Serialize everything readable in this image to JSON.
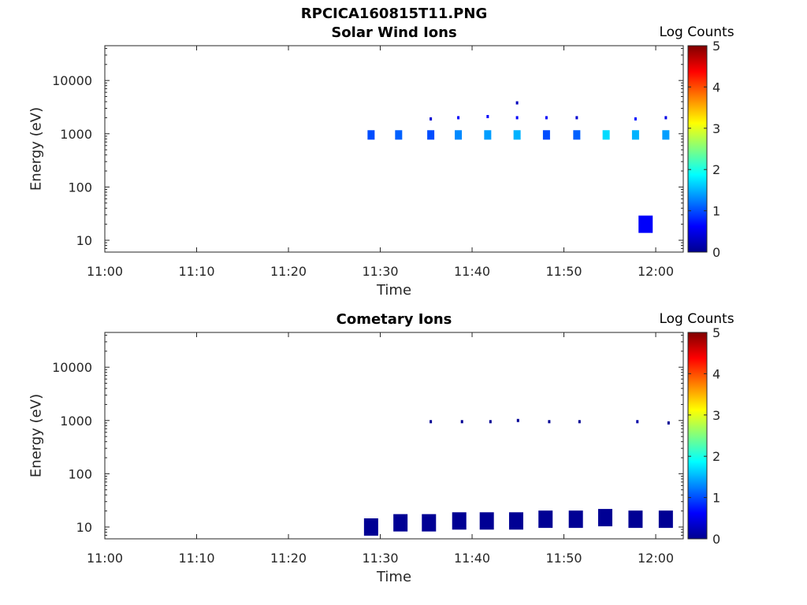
{
  "figure_title": "RPCICA160815T11.PNG",
  "colorbar": {
    "label": "Log Counts",
    "ticks": [
      "0",
      "1",
      "2",
      "3",
      "4",
      "5"
    ],
    "range": [
      0,
      5
    ],
    "colormap": "jet"
  },
  "chart_data": [
    {
      "type": "heatmap",
      "title": "Solar Wind Ions",
      "xlabel": "Time",
      "ylabel": "Energy (eV)",
      "x_ticks": [
        "11:00",
        "11:10",
        "11:20",
        "11:30",
        "11:40",
        "11:50",
        "12:00"
      ],
      "y_ticks": [
        "10",
        "100",
        "1000",
        "10000"
      ],
      "xlim": [
        "11:00",
        "12:03"
      ],
      "ylim": [
        6,
        45000
      ],
      "y_scale": "log",
      "points": [
        {
          "t": "11:29",
          "e": 950,
          "v": 1.0
        },
        {
          "t": "11:32",
          "e": 950,
          "v": 1.1
        },
        {
          "t": "11:35.5",
          "e": 1900,
          "v": 0.4
        },
        {
          "t": "11:35.5",
          "e": 950,
          "v": 1.0
        },
        {
          "t": "11:38.5",
          "e": 2000,
          "v": 0.6
        },
        {
          "t": "11:38.5",
          "e": 950,
          "v": 1.3
        },
        {
          "t": "11:41.7",
          "e": 2100,
          "v": 0.6
        },
        {
          "t": "11:41.7",
          "e": 950,
          "v": 1.4
        },
        {
          "t": "11:44.9",
          "e": 3800,
          "v": 0.3
        },
        {
          "t": "11:44.9",
          "e": 2000,
          "v": 0.6
        },
        {
          "t": "11:44.9",
          "e": 950,
          "v": 1.5
        },
        {
          "t": "11:48.1",
          "e": 2000,
          "v": 0.6
        },
        {
          "t": "11:48.1",
          "e": 950,
          "v": 1.0
        },
        {
          "t": "11:51.4",
          "e": 2000,
          "v": 0.4
        },
        {
          "t": "11:51.4",
          "e": 950,
          "v": 1.1
        },
        {
          "t": "11:54.6",
          "e": 950,
          "v": 1.7
        },
        {
          "t": "11:57.8",
          "e": 1900,
          "v": 0.7
        },
        {
          "t": "11:57.8",
          "e": 950,
          "v": 1.5
        },
        {
          "t": "11:58.9",
          "e": 20,
          "v": 0.6
        },
        {
          "t": "12:01.1",
          "e": 2000,
          "v": 0.5
        },
        {
          "t": "12:01.1",
          "e": 950,
          "v": 1.4
        }
      ]
    },
    {
      "type": "heatmap",
      "title": "Cometary Ions",
      "xlabel": "Time",
      "ylabel": "Energy (eV)",
      "x_ticks": [
        "11:00",
        "11:10",
        "11:20",
        "11:30",
        "11:40",
        "11:50",
        "12:00"
      ],
      "y_ticks": [
        "10",
        "100",
        "1000",
        "10000"
      ],
      "xlim": [
        "11:00",
        "12:03"
      ],
      "ylim": [
        6,
        45000
      ],
      "y_scale": "log",
      "points": [
        {
          "t": "11:35.5",
          "e": 950,
          "v": 0.1
        },
        {
          "t": "11:38.9",
          "e": 950,
          "v": 0.1
        },
        {
          "t": "11:42",
          "e": 950,
          "v": 0.1
        },
        {
          "t": "11:45",
          "e": 1000,
          "v": 0.1
        },
        {
          "t": "11:48.4",
          "e": 950,
          "v": 0.1
        },
        {
          "t": "11:51.7",
          "e": 950,
          "v": 0.1
        },
        {
          "t": "11:58",
          "e": 950,
          "v": 0.2
        },
        {
          "t": "12:01.4",
          "e": 900,
          "v": 0.1
        },
        {
          "t": "11:29",
          "e": 10,
          "v": 0.1
        },
        {
          "t": "11:32.2",
          "e": 12,
          "v": 0.1
        },
        {
          "t": "11:35.3",
          "e": 12,
          "v": 0.1
        },
        {
          "t": "11:38.6",
          "e": 13,
          "v": 0.1
        },
        {
          "t": "11:41.6",
          "e": 13,
          "v": 0.1
        },
        {
          "t": "11:44.8",
          "e": 13,
          "v": 0.1
        },
        {
          "t": "11:48",
          "e": 14,
          "v": 0.1
        },
        {
          "t": "11:51.3",
          "e": 14,
          "v": 0.1
        },
        {
          "t": "11:54.5",
          "e": 15,
          "v": 0.1
        },
        {
          "t": "11:57.8",
          "e": 14,
          "v": 0.1
        },
        {
          "t": "12:01.1",
          "e": 14,
          "v": 0.1
        }
      ]
    }
  ]
}
